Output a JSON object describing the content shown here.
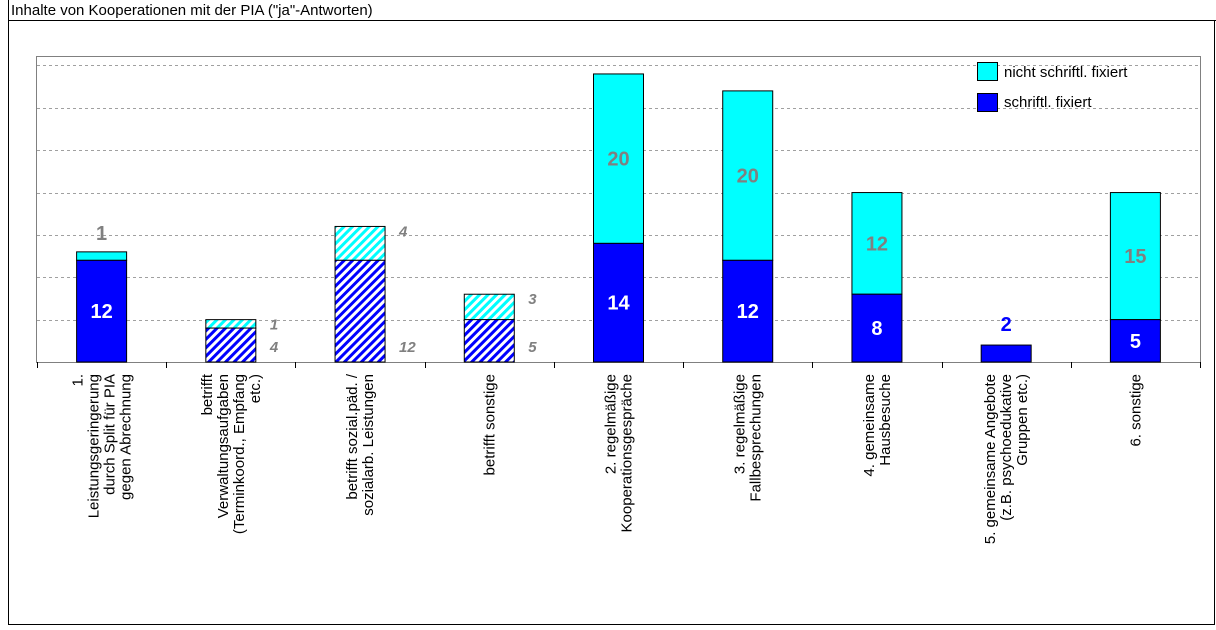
{
  "chart_data": {
    "type": "bar",
    "stacked": true,
    "title": "Inhalte von Kooperationen mit der PIA (\"ja\"-Antworten)",
    "xlabel": "",
    "ylabel": "",
    "ylim": [
      0,
      36
    ],
    "grid": true,
    "legend_position": "top-right",
    "colors": {
      "fixed": "#0000ff",
      "not_fixed": "#00ffff",
      "label_gray": "#808080",
      "label_blue": "#0000ff",
      "label_white": "#ffffff"
    },
    "categories": [
      "1. Leistungsgeringerung durch Split für PIA gegen Abrechnung",
      "betrifft Verwaltungsaufgaben (Terminkoord., Empfang etc.)",
      "betrifft sozial.päd. / sozialarb. Leistungen",
      "betrifft sonstige",
      "2. regelmäßige Kooperationsgespräche",
      "3. regelmäßige Fallbesprechungen",
      "4. gemeinsame Hausbesuche",
      "5. gemeinsame Angebote (z.B. psychoedukative Gruppen etc.)",
      "6. sonstige"
    ],
    "hatched": [
      false,
      true,
      true,
      true,
      false,
      false,
      false,
      false,
      false
    ],
    "series": [
      {
        "name": "schriftl. fixiert",
        "values": [
          12,
          4,
          12,
          5,
          14,
          12,
          8,
          2,
          5
        ],
        "labels": [
          "12",
          "4",
          "12",
          "5",
          "14",
          "12",
          "8",
          "2",
          "5"
        ]
      },
      {
        "name": "nicht schriftl. fixiert",
        "values": [
          1,
          1,
          4,
          3,
          20,
          20,
          12,
          0,
          15
        ],
        "labels": [
          "1",
          "1",
          "4",
          "3",
          "20",
          "20",
          "12",
          "",
          "15"
        ]
      }
    ]
  }
}
